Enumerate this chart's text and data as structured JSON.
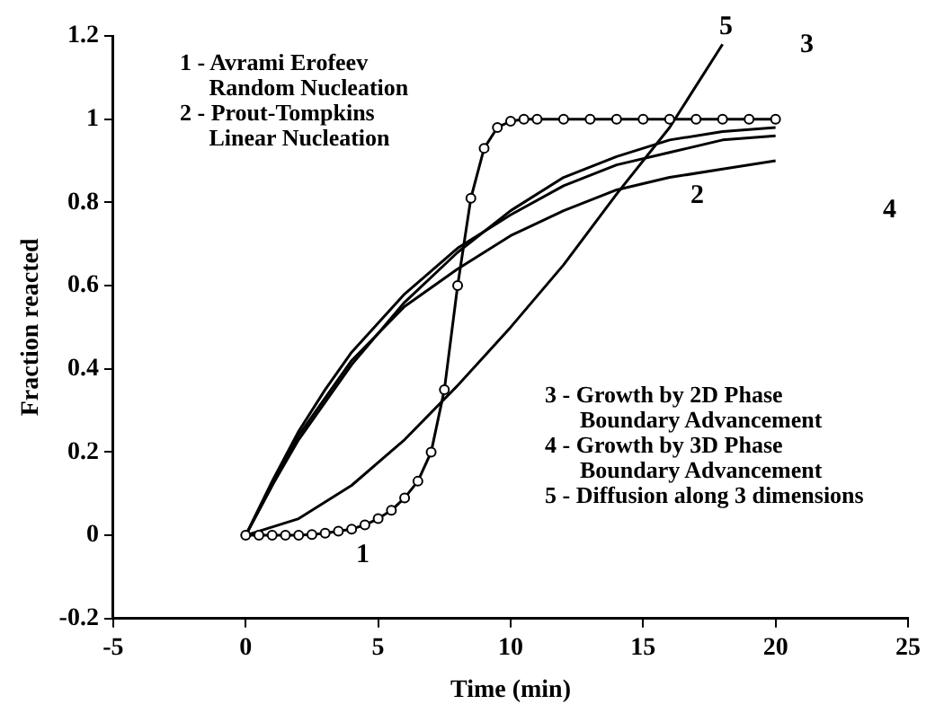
{
  "chart_data": {
    "type": "line",
    "xlabel": "Time (min)",
    "ylabel": "Fraction reacted",
    "xlim": [
      -5,
      25
    ],
    "xticks": [
      -5,
      0,
      5,
      10,
      15,
      20,
      25
    ],
    "ylim": [
      -0.2,
      1.2
    ],
    "yticks": [
      -0.2,
      0,
      0.2,
      0.4,
      0.6,
      0.8,
      1,
      1.2
    ],
    "grid": false,
    "legend": false,
    "line_style": "solid",
    "series": [
      {
        "color": "#000000",
        "marker": "circle",
        "x": [
          0,
          0.5,
          1,
          1.5,
          2,
          2.5,
          3,
          3.5,
          4,
          4.5,
          5,
          5.5,
          6,
          6.5,
          7,
          7.5,
          8,
          8.5,
          9,
          9.5,
          10,
          10.5,
          11,
          12,
          13,
          14,
          15,
          16,
          17,
          18,
          19,
          20
        ],
        "values": [
          0,
          0,
          0,
          0,
          0,
          0.002,
          0.005,
          0.01,
          0.015,
          0.025,
          0.04,
          0.06,
          0.09,
          0.13,
          0.2,
          0.35,
          0.6,
          0.81,
          0.93,
          0.98,
          0.995,
          1,
          1,
          1,
          1,
          1,
          1,
          1,
          1,
          1,
          1,
          1
        ]
      },
      {
        "color": "#000000",
        "marker": "none",
        "x": [
          0,
          1,
          2,
          3,
          4,
          6,
          8,
          10,
          12,
          14,
          16,
          18,
          20
        ],
        "values": [
          0,
          0.12,
          0.24,
          0.33,
          0.42,
          0.55,
          0.64,
          0.72,
          0.78,
          0.83,
          0.86,
          0.88,
          0.9
        ]
      },
      {
        "color": "#000000",
        "marker": "none",
        "x": [
          0,
          1,
          2,
          3,
          4,
          6,
          8,
          10,
          12,
          14,
          16,
          18,
          20
        ],
        "values": [
          0,
          0.12,
          0.23,
          0.32,
          0.41,
          0.56,
          0.68,
          0.78,
          0.86,
          0.91,
          0.95,
          0.97,
          0.98
        ]
      },
      {
        "color": "#000000",
        "marker": "none",
        "x": [
          0,
          1,
          2,
          3,
          4,
          6,
          8,
          10,
          12,
          14,
          16,
          18,
          20
        ],
        "values": [
          0,
          0.13,
          0.25,
          0.35,
          0.44,
          0.58,
          0.69,
          0.77,
          0.84,
          0.89,
          0.92,
          0.95,
          0.96
        ]
      },
      {
        "color": "#000000",
        "marker": "none",
        "x": [
          0,
          2,
          4,
          6,
          8,
          10,
          12,
          14,
          16,
          18
        ],
        "values": [
          0,
          0.04,
          0.12,
          0.23,
          0.36,
          0.5,
          0.65,
          0.82,
          0.98,
          1.18
        ]
      }
    ],
    "annotations": [
      "1 - Avrami Erofeev\n     Random Nucleation\n2 - Prout-Tompkins\n     Linear Nucleation",
      "3 - Growth by 2D Phase\n      Boundary Advancement\n4 - Growth by 3D Phase\n      Boundary Advancement\n5 - Diffusion along 3 dimensions",
      "1",
      "2",
      "3",
      "4",
      "5"
    ]
  }
}
